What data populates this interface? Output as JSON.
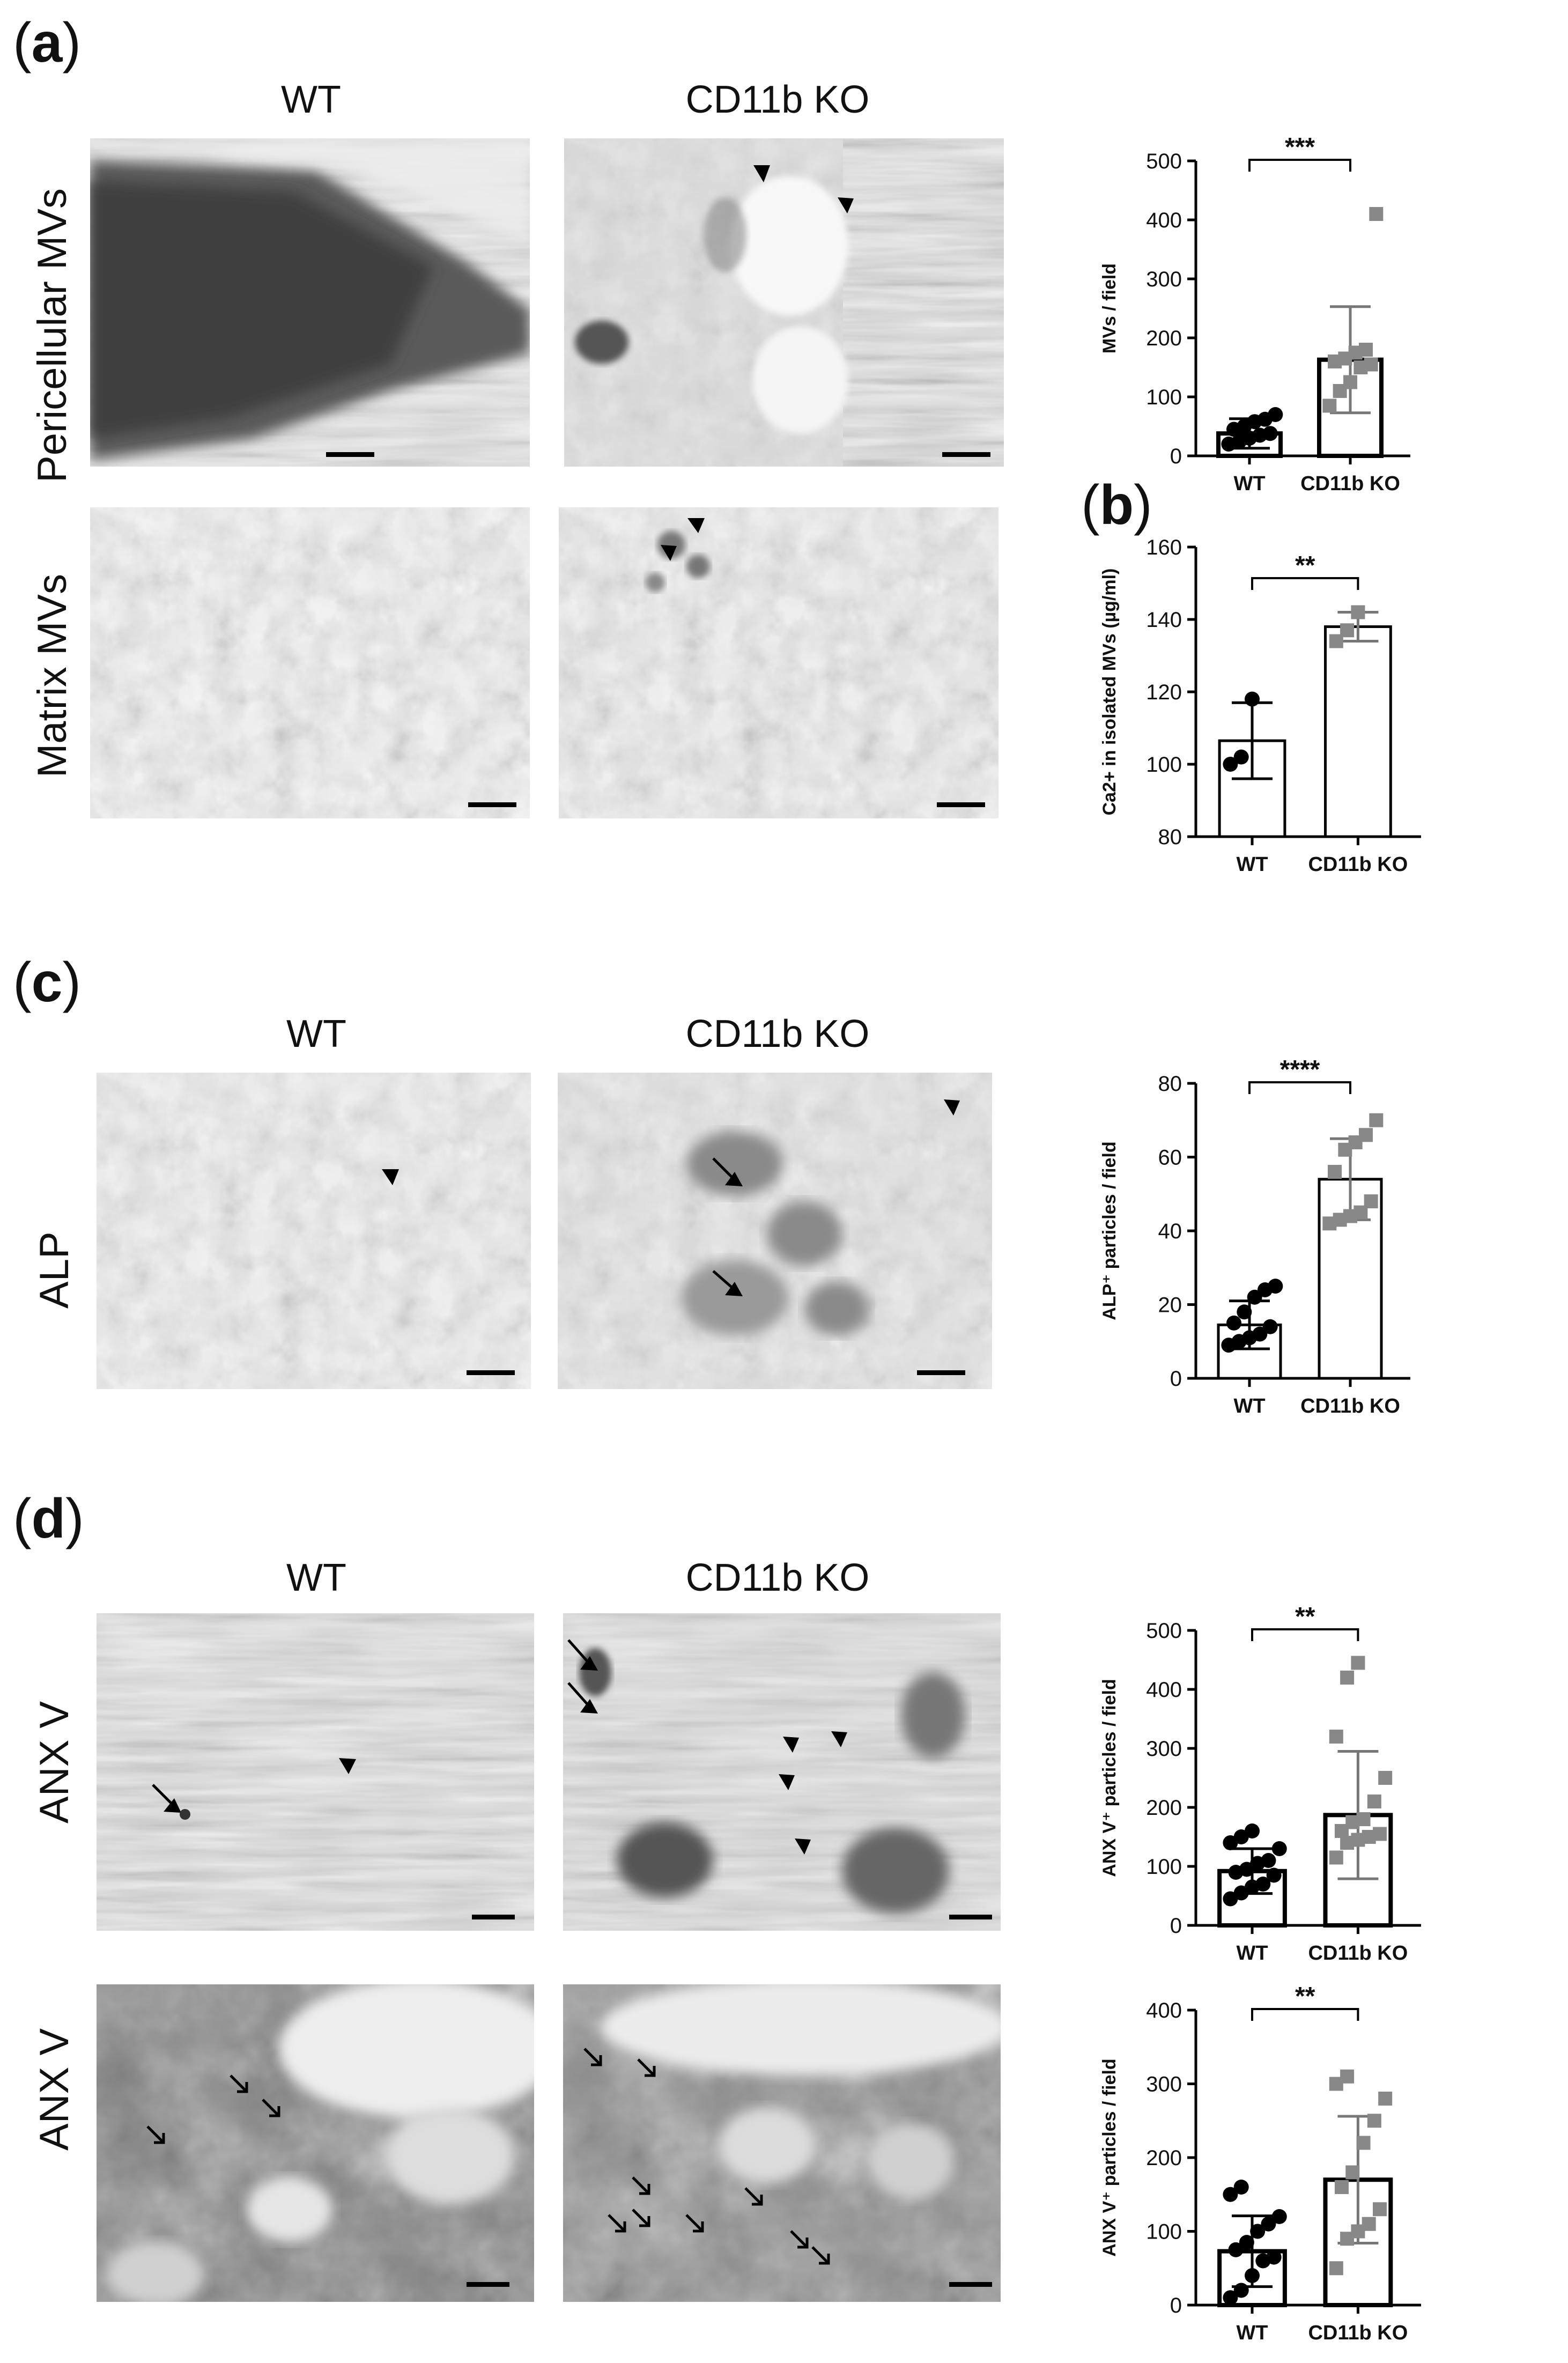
{
  "panels": {
    "a": {
      "letter": "a",
      "columns": [
        "WT",
        "CD11b KO"
      ],
      "rows": [
        "Pericellular MVs",
        "Matrix MVs"
      ]
    },
    "b": {
      "letter": "b"
    },
    "c": {
      "letter": "c",
      "columns": [
        "WT",
        "CD11b KO"
      ],
      "rows": [
        "ALP"
      ]
    },
    "d": {
      "letter": "d",
      "columns": [
        "WT",
        "CD11b KO"
      ],
      "rows": [
        "ANX V",
        "ANX V"
      ]
    }
  },
  "colors": {
    "wt_marker": "#000000",
    "ko_marker": "#888888",
    "bar_edge": "#000000"
  },
  "chart_data": [
    {
      "id": "chart-a",
      "type": "bar",
      "categories": [
        "WT",
        "CD11b KO"
      ],
      "values": [
        38,
        163
      ],
      "sd": [
        25,
        90
      ],
      "points": [
        [
          20,
          24,
          30,
          35,
          38,
          45,
          50,
          58,
          62,
          70
        ],
        [
          85,
          110,
          125,
          150,
          155,
          160,
          165,
          175,
          180,
          410
        ]
      ],
      "ylabel": "MVs / field",
      "ylim": [
        0,
        500
      ],
      "yticks": [
        "0",
        "100",
        "200",
        "300",
        "400",
        "500"
      ],
      "significance": "***"
    },
    {
      "id": "chart-b",
      "type": "bar",
      "categories": [
        "WT",
        "CD11b KO"
      ],
      "values": [
        106.5,
        138
      ],
      "sd": [
        10.5,
        4
      ],
      "points": [
        [
          100,
          102,
          118
        ],
        [
          134,
          137,
          142
        ]
      ],
      "ylabel": "Ca2+ in isolated MVs (µg/ml)",
      "ylim": [
        80,
        160
      ],
      "yticks": [
        "80",
        "100",
        "120",
        "140",
        "160"
      ],
      "significance": "**"
    },
    {
      "id": "chart-c",
      "type": "bar",
      "categories": [
        "WT",
        "CD11b KO"
      ],
      "values": [
        14.5,
        54
      ],
      "sd": [
        6.5,
        11
      ],
      "points": [
        [
          9,
          10,
          11,
          12,
          14,
          15,
          18,
          22,
          24,
          25
        ],
        [
          42,
          43,
          44,
          45,
          48,
          56,
          62,
          64,
          66,
          70
        ]
      ],
      "ylabel": "ALP⁺ particles / field",
      "ylim": [
        0,
        80
      ],
      "yticks": [
        "0",
        "20",
        "40",
        "60",
        "80"
      ],
      "significance": "****"
    },
    {
      "id": "chart-d1",
      "type": "bar",
      "categories": [
        "WT",
        "CD11b KO"
      ],
      "values": [
        92,
        187
      ],
      "sd": [
        38,
        108
      ],
      "points": [
        [
          45,
          55,
          65,
          70,
          85,
          90,
          95,
          105,
          110,
          130,
          140,
          150,
          160
        ],
        [
          115,
          140,
          145,
          150,
          155,
          160,
          175,
          180,
          210,
          250,
          320,
          420,
          445
        ]
      ],
      "ylabel": "ANX V⁺ particles / field",
      "ylim": [
        0,
        500
      ],
      "yticks": [
        "0",
        "100",
        "200",
        "300",
        "400",
        "500"
      ],
      "significance": "**"
    },
    {
      "id": "chart-d2",
      "type": "bar",
      "categories": [
        "WT",
        "CD11b KO"
      ],
      "values": [
        73,
        170
      ],
      "sd": [
        48,
        86
      ],
      "points": [
        [
          10,
          20,
          40,
          60,
          65,
          75,
          85,
          100,
          110,
          120,
          150,
          160
        ],
        [
          50,
          90,
          100,
          110,
          130,
          160,
          180,
          220,
          250,
          280,
          300,
          310
        ]
      ],
      "ylabel": "ANX V⁺ particles / field",
      "ylim": [
        0,
        400
      ],
      "yticks": [
        "0",
        "100",
        "200",
        "300",
        "400"
      ],
      "significance": "**"
    }
  ]
}
